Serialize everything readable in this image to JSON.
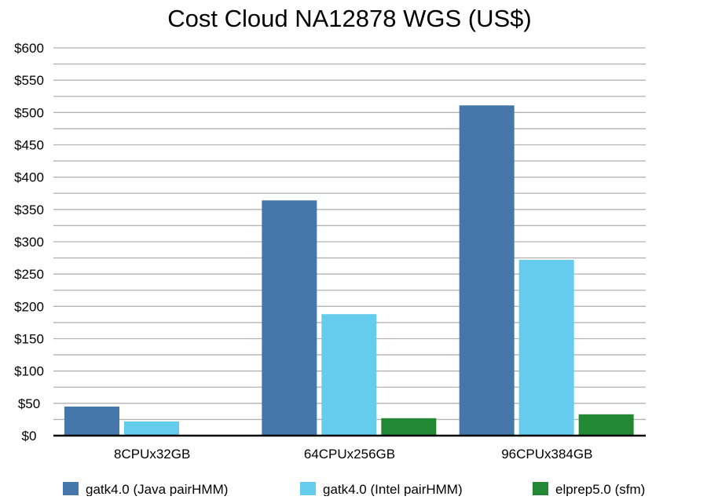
{
  "chart_data": {
    "type": "bar",
    "title": "Cost Cloud NA12878 WGS (US$)",
    "xlabel": "",
    "ylabel": "",
    "ylim": [
      0,
      600
    ],
    "yticks": [
      "$0",
      "$50",
      "$100",
      "$150",
      "$200",
      "$250",
      "$300",
      "$350",
      "$400",
      "$450",
      "$500",
      "$550",
      "$600"
    ],
    "grid": true,
    "legend_position": "bottom",
    "categories": [
      "8CPUx32GB",
      "64CPUx256GB",
      "96CPUx384GB"
    ],
    "series": [
      {
        "name": "gatk4.0 (Java pairHMM)",
        "color": "#4577aa",
        "values": [
          45,
          364,
          511
        ]
      },
      {
        "name": "gatk4.0 (Intel pairHMM)",
        "color": "#66ccee",
        "values": [
          22,
          188,
          272
        ]
      },
      {
        "name": "elprep5.0 (sfm)",
        "color": "#228833",
        "values": [
          null,
          27,
          33
        ]
      }
    ]
  }
}
